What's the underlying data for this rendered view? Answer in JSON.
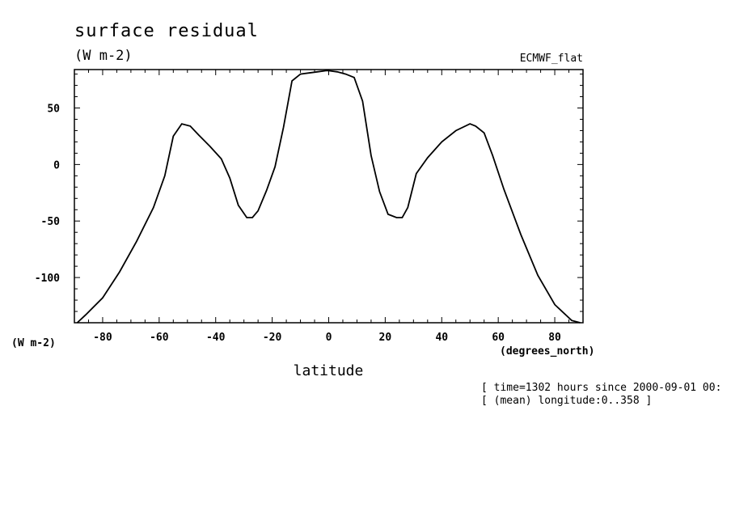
{
  "chart_data": {
    "type": "line",
    "title": "surface residual",
    "units": "(W m-2)",
    "dataset": "ECMWF_flat",
    "xlabel": "latitude",
    "x_units": "(degrees_north)",
    "y_units": "(W m-2)",
    "xlim": [
      -90,
      90
    ],
    "ylim": [
      -140,
      84
    ],
    "xticks": [
      -80,
      -60,
      -40,
      -20,
      0,
      20,
      40,
      60,
      80
    ],
    "xtick_labels": [
      "-80",
      "-60",
      "-40",
      "-20",
      "0",
      "20",
      "40",
      "60",
      "80"
    ],
    "yticks": [
      -100,
      -50,
      0,
      50
    ],
    "ytick_labels": [
      "-100",
      "-50",
      "0",
      "50"
    ],
    "notes": [
      "[ time=1302 hours since 2000-09-01 00:",
      "[ (mean) longitude:0..358 ]"
    ],
    "series": [
      {
        "name": "surface residual",
        "x": [
          -89,
          -86,
          -80,
          -74,
          -68,
          -62,
          -58,
          -55,
          -52,
          -49,
          -46,
          -42,
          -38,
          -35,
          -32,
          -29,
          -27,
          -25,
          -22,
          -19,
          -16,
          -13,
          -10,
          -7,
          -4,
          -1,
          0,
          3,
          6,
          9,
          12,
          15,
          18,
          21,
          24,
          26,
          28,
          31,
          35,
          40,
          45,
          50,
          52,
          55,
          58,
          62,
          68,
          74,
          80,
          86,
          89
        ],
        "values": [
          -140,
          -133,
          -118,
          -95,
          -68,
          -38,
          -10,
          25,
          36,
          34,
          26,
          16,
          5,
          -12,
          -36,
          -47,
          -47,
          -41,
          -23,
          -2,
          33,
          74,
          80,
          81,
          82,
          83,
          83,
          82,
          80,
          77,
          56,
          8,
          -24,
          -44,
          -47,
          -47,
          -38,
          -8,
          6,
          20,
          30,
          36,
          34,
          28,
          8,
          -22,
          -62,
          -98,
          -124,
          -138,
          -140
        ]
      }
    ]
  }
}
